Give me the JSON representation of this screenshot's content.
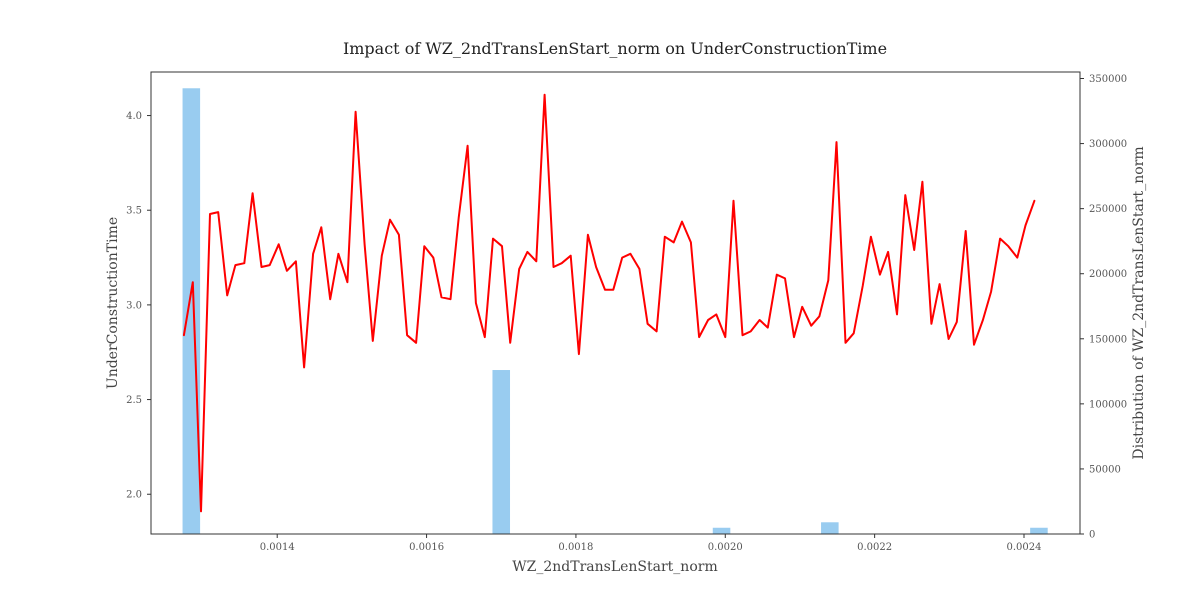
{
  "chart_data": {
    "type": "line",
    "title": "Impact of WZ_2ndTransLenStart_norm on UnderConstructionTime",
    "xlabel": "WZ_2ndTransLenStart_norm",
    "ylabel": "UnderConstructionTime",
    "y2label": "Distribution of WZ_2ndTransLenStart_norm",
    "xlim": [
      0.001231,
      0.002475
    ],
    "ylim": [
      1.79,
      4.23
    ],
    "y2lim": [
      0,
      355000
    ],
    "x_ticks": [
      "0.0014",
      "0.0016",
      "0.0018",
      "0.0020",
      "0.0022",
      "0.0024"
    ],
    "y_ticks": [
      "2.0",
      "2.5",
      "3.0",
      "3.5",
      "4.0"
    ],
    "y2_ticks": [
      "0",
      "50000",
      "100000",
      "150000",
      "200000",
      "250000",
      "300000",
      "350000"
    ],
    "grid": false,
    "colors": {
      "line": "#ff0000",
      "bars": "#99ccf0",
      "axis": "#333333"
    },
    "histogram": {
      "name": "Distribution of WZ_2ndTransLenStart_norm",
      "bin_width": 2.35e-05,
      "bins": [
        {
          "x": 0.001285,
          "count": 342500
        },
        {
          "x": 0.0017,
          "count": 126000
        },
        {
          "x": 0.001995,
          "count": 4800
        },
        {
          "x": 0.00214,
          "count": 9000
        },
        {
          "x": 0.00242,
          "count": 4800
        }
      ]
    },
    "series": [
      {
        "x": [
          0.001275,
          0.001287,
          0.001298,
          0.00131,
          0.001321,
          0.001333,
          0.001344,
          0.001356,
          0.001367,
          0.001379,
          0.00139,
          0.001402,
          0.001413,
          0.001425,
          0.001436,
          0.001448,
          0.001459,
          0.001471,
          0.001482,
          0.001494,
          0.001505,
          0.001517,
          0.001528,
          0.00154,
          0.001551,
          0.001563,
          0.001574,
          0.001586,
          0.001597,
          0.001609,
          0.00162,
          0.001632,
          0.001643,
          0.001655,
          0.001666,
          0.001678,
          0.001689,
          0.001701,
          0.001712,
          0.001724,
          0.001735,
          0.001747,
          0.001758,
          0.00177,
          0.001781,
          0.001793,
          0.001804,
          0.001816,
          0.001827,
          0.001839,
          0.00185,
          0.001862,
          0.001873,
          0.001885,
          0.001896,
          0.001908,
          0.001919,
          0.001931,
          0.001942,
          0.001954,
          0.001965,
          0.001977,
          0.001988,
          0.002,
          0.002011,
          0.002023,
          0.002034,
          0.002046,
          0.002057,
          0.002069,
          0.00208,
          0.002092,
          0.002103,
          0.002115,
          0.002126,
          0.002138,
          0.002149,
          0.002161,
          0.002172,
          0.002184,
          0.002195,
          0.002207,
          0.002218,
          0.00223,
          0.002241,
          0.002253,
          0.002264,
          0.002276,
          0.002287,
          0.002299,
          0.00231,
          0.002322,
          0.002333,
          0.002345,
          0.002356,
          0.002368,
          0.002379,
          0.002391,
          0.002402,
          0.002414
        ],
        "values": [
          2.84,
          3.12,
          1.91,
          3.48,
          3.49,
          3.05,
          3.21,
          3.22,
          3.59,
          3.2,
          3.21,
          3.32,
          3.18,
          3.23,
          2.67,
          3.27,
          3.41,
          3.03,
          3.27,
          3.12,
          4.02,
          3.32,
          2.81,
          3.26,
          3.45,
          3.37,
          2.84,
          2.8,
          3.31,
          3.25,
          3.04,
          3.03,
          3.46,
          3.84,
          3.01,
          2.83,
          3.35,
          3.31,
          2.8,
          3.19,
          3.28,
          3.23,
          4.11,
          3.2,
          3.22,
          3.26,
          2.74,
          3.37,
          3.2,
          3.08,
          3.08,
          3.25,
          3.27,
          3.19,
          2.9,
          2.86,
          3.36,
          3.33,
          3.44,
          3.33,
          2.83,
          2.92,
          2.95,
          2.83,
          3.55,
          2.84,
          2.86,
          2.92,
          2.88,
          3.16,
          3.14,
          2.83,
          2.99,
          2.89,
          2.94,
          3.13,
          3.86,
          2.8,
          2.85,
          3.1,
          3.36,
          3.16,
          3.28,
          2.95,
          3.58,
          3.29,
          3.65,
          2.9,
          3.11,
          2.82,
          2.91,
          3.39,
          2.79,
          2.92,
          3.07,
          3.35,
          3.31,
          3.25,
          3.42,
          3.55
        ]
      }
    ]
  }
}
